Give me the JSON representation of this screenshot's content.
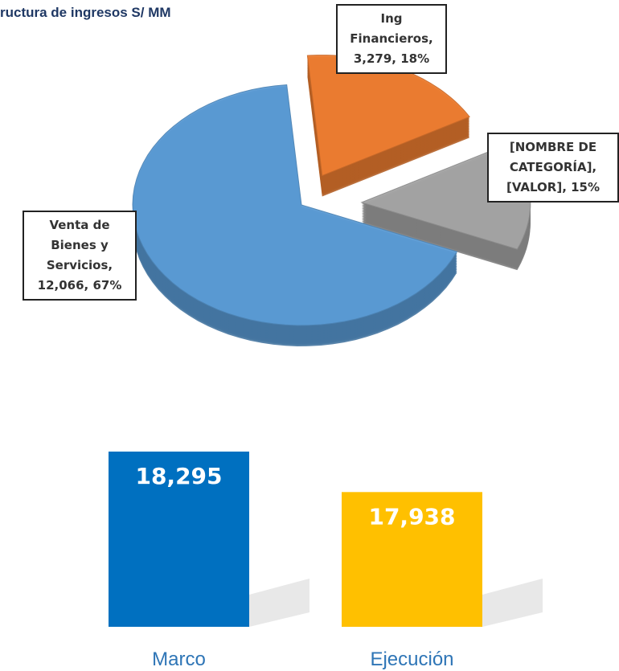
{
  "chart_data": [
    {
      "type": "pie",
      "title": "ructura de ingresos S/ MM",
      "categories": [
        "Ing Financieros",
        "[NOMBRE DE CATEGORÍA]",
        "Venta de Bienes y Servicios"
      ],
      "values": [
        3279,
        2593,
        12066
      ],
      "value_labels": [
        "Ing Financieros, 3,279, 18%",
        "[NOMBRE DE CATEGORÍA], [VALOR], 15%",
        "Venta de Bienes y Servicios, 12,066, 67%"
      ],
      "colors": [
        "#ed7d31",
        "#a5a5a5",
        "#5b9bd5"
      ]
    },
    {
      "type": "bar",
      "categories": [
        "Marco",
        "Ejecución"
      ],
      "values": [
        18295,
        17938
      ],
      "value_labels": [
        "18,295",
        "17,938"
      ],
      "colors": [
        "#0070c0",
        "#ffc000"
      ],
      "ylim": [
        16750,
        18500
      ]
    }
  ]
}
